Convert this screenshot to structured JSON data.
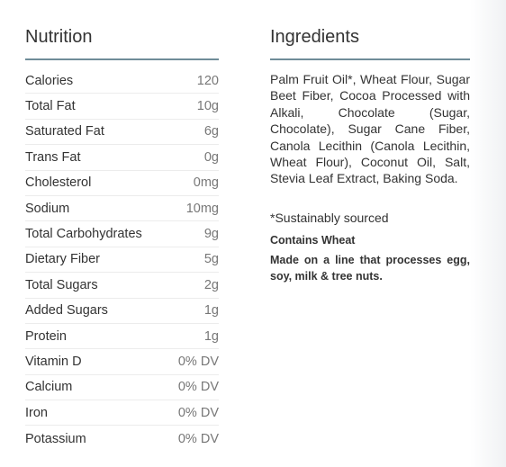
{
  "nutrition": {
    "title": "Nutrition",
    "rows": [
      [
        "Calories",
        "120"
      ],
      [
        "Total Fat",
        "10g"
      ],
      [
        "Saturated Fat",
        "6g"
      ],
      [
        "Trans Fat",
        "0g"
      ],
      [
        "Cholesterol",
        "0mg"
      ],
      [
        "Sodium",
        "10mg"
      ],
      [
        "Total Carbohydrates",
        "9g"
      ],
      [
        "Dietary Fiber",
        "5g"
      ],
      [
        "Total Sugars",
        "2g"
      ],
      [
        "Added Sugars",
        "1g"
      ],
      [
        "Protein",
        "1g"
      ],
      [
        "Vitamin D",
        "0% DV"
      ],
      [
        "Calcium",
        "0% DV"
      ],
      [
        "Iron",
        "0% DV"
      ],
      [
        "Potassium",
        "0% DV"
      ]
    ]
  },
  "ingredients": {
    "title": "Ingredients",
    "text": "Palm Fruit Oil*, Wheat Flour, Sugar Beet Fiber, Cocoa Processed with Alkali, Chocolate (Sugar, Chocolate), Sugar Cane Fiber, Canola Lecithin (Canola Lecithin, Wheat Flour), Coconut Oil, Salt, Stevia Leaf Extract, Baking Soda.",
    "note": "*Sustainably sourced",
    "allergen": "Contains Wheat",
    "facility": "Made on a line that processes egg, soy, milk & tree nuts."
  }
}
